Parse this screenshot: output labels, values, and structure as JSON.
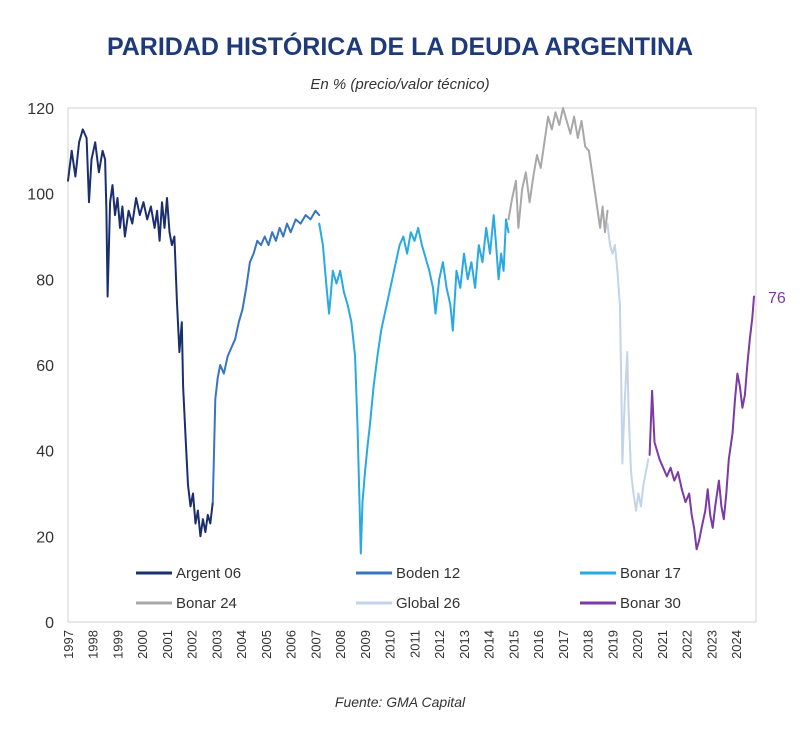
{
  "chart_data": {
    "type": "line",
    "title": "PARIDAD HISTÓRICA DE LA DEUDA ARGENTINA",
    "subtitle": "En % (precio/valor técnico)",
    "source": "Fuente: GMA Capital",
    "xlim": [
      1997,
      2024.8
    ],
    "ylim": [
      0,
      120
    ],
    "yticks": [
      "0",
      "20",
      "40",
      "60",
      "80",
      "100",
      "120"
    ],
    "xticks": [
      "1997",
      "1998",
      "1999",
      "2000",
      "2001",
      "2002",
      "2003",
      "2004",
      "2005",
      "2006",
      "2007",
      "2008",
      "2009",
      "2010",
      "2011",
      "2012",
      "2013",
      "2014",
      "2015",
      "2016",
      "2017",
      "2018",
      "2019",
      "2020",
      "2021",
      "2022",
      "2023",
      "2024"
    ],
    "legend_position": "bottom-inside",
    "grid": false,
    "end_label": "76",
    "series": [
      {
        "name": "Argent 06",
        "color": "#1b2f6e",
        "points": [
          [
            1997.0,
            103
          ],
          [
            1997.15,
            110
          ],
          [
            1997.3,
            104
          ],
          [
            1997.45,
            112
          ],
          [
            1997.6,
            115
          ],
          [
            1997.75,
            113
          ],
          [
            1997.85,
            98
          ],
          [
            1997.95,
            108
          ],
          [
            1998.1,
            112
          ],
          [
            1998.25,
            105
          ],
          [
            1998.4,
            110
          ],
          [
            1998.5,
            108
          ],
          [
            1998.55,
            96
          ],
          [
            1998.6,
            76
          ],
          [
            1998.7,
            98
          ],
          [
            1998.8,
            102
          ],
          [
            1998.9,
            95
          ],
          [
            1999.0,
            99
          ],
          [
            1999.1,
            92
          ],
          [
            1999.2,
            97
          ],
          [
            1999.3,
            90
          ],
          [
            1999.45,
            96
          ],
          [
            1999.6,
            93
          ],
          [
            1999.75,
            99
          ],
          [
            1999.9,
            95
          ],
          [
            2000.05,
            98
          ],
          [
            2000.2,
            94
          ],
          [
            2000.35,
            97
          ],
          [
            2000.5,
            92
          ],
          [
            2000.6,
            96
          ],
          [
            2000.7,
            89
          ],
          [
            2000.8,
            98
          ],
          [
            2000.9,
            92
          ],
          [
            2001.0,
            99
          ],
          [
            2001.1,
            91
          ],
          [
            2001.2,
            88
          ],
          [
            2001.3,
            90
          ],
          [
            2001.4,
            75
          ],
          [
            2001.5,
            63
          ],
          [
            2001.6,
            70
          ],
          [
            2001.65,
            55
          ],
          [
            2001.75,
            43
          ],
          [
            2001.85,
            32
          ],
          [
            2001.95,
            27
          ],
          [
            2002.05,
            30
          ],
          [
            2002.15,
            23
          ],
          [
            2002.25,
            26
          ],
          [
            2002.35,
            20
          ],
          [
            2002.45,
            24
          ],
          [
            2002.55,
            21
          ],
          [
            2002.65,
            25
          ],
          [
            2002.75,
            23
          ],
          [
            2002.85,
            28
          ]
        ]
      },
      {
        "name": "Boden 12",
        "color": "#3874c2",
        "points": [
          [
            2002.85,
            28
          ],
          [
            2002.95,
            52
          ],
          [
            2003.05,
            57
          ],
          [
            2003.15,
            60
          ],
          [
            2003.3,
            58
          ],
          [
            2003.45,
            62
          ],
          [
            2003.6,
            64
          ],
          [
            2003.75,
            66
          ],
          [
            2003.9,
            70
          ],
          [
            2004.05,
            73
          ],
          [
            2004.2,
            78
          ],
          [
            2004.35,
            84
          ],
          [
            2004.5,
            86
          ],
          [
            2004.65,
            89
          ],
          [
            2004.8,
            88
          ],
          [
            2004.95,
            90
          ],
          [
            2005.1,
            88
          ],
          [
            2005.25,
            91
          ],
          [
            2005.4,
            89
          ],
          [
            2005.55,
            92
          ],
          [
            2005.7,
            90
          ],
          [
            2005.85,
            93
          ],
          [
            2006.0,
            91
          ],
          [
            2006.2,
            94
          ],
          [
            2006.4,
            93
          ],
          [
            2006.6,
            95
          ],
          [
            2006.8,
            94
          ],
          [
            2007.0,
            96
          ],
          [
            2007.15,
            95
          ]
        ]
      },
      {
        "name": "Bonar 17",
        "color": "#29a9e1",
        "points": [
          [
            2007.15,
            93
          ],
          [
            2007.3,
            88
          ],
          [
            2007.45,
            78
          ],
          [
            2007.55,
            72
          ],
          [
            2007.7,
            82
          ],
          [
            2007.85,
            79
          ],
          [
            2008.0,
            82
          ],
          [
            2008.15,
            77
          ],
          [
            2008.3,
            74
          ],
          [
            2008.45,
            70
          ],
          [
            2008.6,
            62
          ],
          [
            2008.7,
            45
          ],
          [
            2008.78,
            28
          ],
          [
            2008.83,
            16
          ],
          [
            2008.9,
            28
          ],
          [
            2009.0,
            35
          ],
          [
            2009.1,
            41
          ],
          [
            2009.2,
            46
          ],
          [
            2009.35,
            55
          ],
          [
            2009.5,
            62
          ],
          [
            2009.65,
            68
          ],
          [
            2009.8,
            72
          ],
          [
            2009.95,
            76
          ],
          [
            2010.1,
            80
          ],
          [
            2010.25,
            84
          ],
          [
            2010.4,
            88
          ],
          [
            2010.55,
            90
          ],
          [
            2010.7,
            86
          ],
          [
            2010.85,
            91
          ],
          [
            2011.0,
            89
          ],
          [
            2011.15,
            92
          ],
          [
            2011.3,
            88
          ],
          [
            2011.45,
            85
          ],
          [
            2011.6,
            82
          ],
          [
            2011.75,
            78
          ],
          [
            2011.85,
            72
          ],
          [
            2012.0,
            80
          ],
          [
            2012.15,
            84
          ],
          [
            2012.3,
            78
          ],
          [
            2012.45,
            74
          ],
          [
            2012.55,
            68
          ],
          [
            2012.7,
            82
          ],
          [
            2012.85,
            78
          ],
          [
            2013.0,
            86
          ],
          [
            2013.15,
            80
          ],
          [
            2013.3,
            84
          ],
          [
            2013.45,
            78
          ],
          [
            2013.6,
            88
          ],
          [
            2013.75,
            84
          ],
          [
            2013.9,
            92
          ],
          [
            2014.05,
            86
          ],
          [
            2014.2,
            95
          ],
          [
            2014.3,
            88
          ],
          [
            2014.4,
            80
          ],
          [
            2014.5,
            86
          ],
          [
            2014.6,
            82
          ],
          [
            2014.7,
            94
          ],
          [
            2014.8,
            91
          ]
        ]
      },
      {
        "name": "Bonar 24",
        "color": "#a8a8a8",
        "points": [
          [
            2014.8,
            94
          ],
          [
            2014.95,
            99
          ],
          [
            2015.1,
            103
          ],
          [
            2015.2,
            92
          ],
          [
            2015.35,
            101
          ],
          [
            2015.5,
            105
          ],
          [
            2015.65,
            98
          ],
          [
            2015.8,
            104
          ],
          [
            2015.95,
            109
          ],
          [
            2016.1,
            106
          ],
          [
            2016.25,
            112
          ],
          [
            2016.4,
            118
          ],
          [
            2016.55,
            115
          ],
          [
            2016.7,
            119
          ],
          [
            2016.85,
            116
          ],
          [
            2017.0,
            120
          ],
          [
            2017.15,
            117
          ],
          [
            2017.3,
            114
          ],
          [
            2017.45,
            118
          ],
          [
            2017.6,
            113
          ],
          [
            2017.75,
            117
          ],
          [
            2017.9,
            111
          ],
          [
            2018.05,
            110
          ],
          [
            2018.2,
            104
          ],
          [
            2018.35,
            98
          ],
          [
            2018.5,
            92
          ],
          [
            2018.6,
            97
          ],
          [
            2018.7,
            91
          ],
          [
            2018.8,
            96
          ]
        ]
      },
      {
        "name": "Global 26",
        "color": "#c2d3ea",
        "points": [
          [
            2018.8,
            93
          ],
          [
            2018.9,
            88
          ],
          [
            2019.0,
            86
          ],
          [
            2019.1,
            88
          ],
          [
            2019.2,
            82
          ],
          [
            2019.3,
            74
          ],
          [
            2019.35,
            58
          ],
          [
            2019.4,
            37
          ],
          [
            2019.5,
            52
          ],
          [
            2019.6,
            63
          ],
          [
            2019.65,
            50
          ],
          [
            2019.75,
            35
          ],
          [
            2019.85,
            30
          ],
          [
            2019.95,
            26
          ],
          [
            2020.05,
            30
          ],
          [
            2020.15,
            27
          ],
          [
            2020.25,
            32
          ],
          [
            2020.35,
            35
          ],
          [
            2020.45,
            38
          ]
        ]
      },
      {
        "name": "Bonar 30",
        "color": "#7b3aa8",
        "points": [
          [
            2020.5,
            39
          ],
          [
            2020.6,
            54
          ],
          [
            2020.7,
            42
          ],
          [
            2020.8,
            40
          ],
          [
            2020.9,
            38
          ],
          [
            2021.05,
            36
          ],
          [
            2021.2,
            34
          ],
          [
            2021.35,
            36
          ],
          [
            2021.5,
            33
          ],
          [
            2021.65,
            35
          ],
          [
            2021.8,
            31
          ],
          [
            2021.95,
            28
          ],
          [
            2022.1,
            30
          ],
          [
            2022.2,
            25
          ],
          [
            2022.3,
            22
          ],
          [
            2022.4,
            17
          ],
          [
            2022.5,
            19
          ],
          [
            2022.6,
            22
          ],
          [
            2022.75,
            26
          ],
          [
            2022.85,
            31
          ],
          [
            2022.95,
            25
          ],
          [
            2023.05,
            22
          ],
          [
            2023.15,
            27
          ],
          [
            2023.3,
            33
          ],
          [
            2023.4,
            27
          ],
          [
            2023.5,
            24
          ],
          [
            2023.6,
            30
          ],
          [
            2023.7,
            38
          ],
          [
            2023.85,
            44
          ],
          [
            2023.95,
            52
          ],
          [
            2024.05,
            58
          ],
          [
            2024.15,
            55
          ],
          [
            2024.25,
            50
          ],
          [
            2024.35,
            53
          ],
          [
            2024.45,
            60
          ],
          [
            2024.55,
            66
          ],
          [
            2024.65,
            71
          ],
          [
            2024.72,
            76
          ]
        ]
      }
    ]
  }
}
